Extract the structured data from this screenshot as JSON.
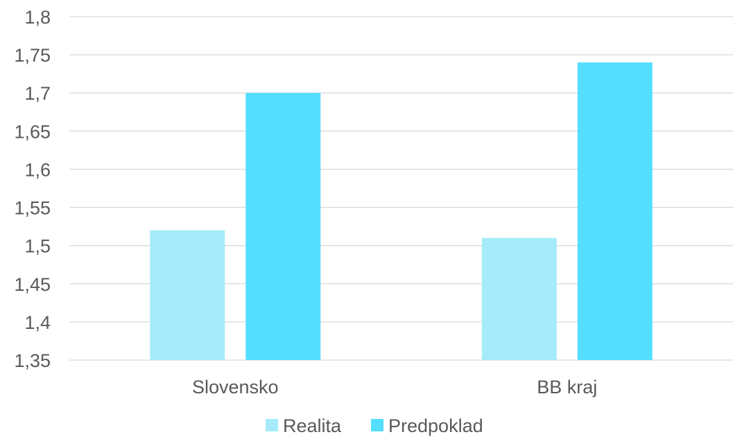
{
  "chart_data": {
    "type": "bar",
    "categories": [
      "Slovensko",
      "BB kraj"
    ],
    "series": [
      {
        "name": "Realita",
        "values": [
          1.52,
          1.51
        ],
        "color": "#a6ebfa"
      },
      {
        "name": "Predpoklad",
        "values": [
          1.7,
          1.74
        ],
        "color": "#55dfff"
      }
    ],
    "yticks": [
      "1,35",
      "1,4",
      "1,45",
      "1,5",
      "1,55",
      "1,6",
      "1,65",
      "1,7",
      "1,75",
      "1,8"
    ],
    "ylim": [
      1.35,
      1.8
    ],
    "grid": true,
    "legend_position": "bottom",
    "title": "",
    "xlabel": "",
    "ylabel": ""
  }
}
